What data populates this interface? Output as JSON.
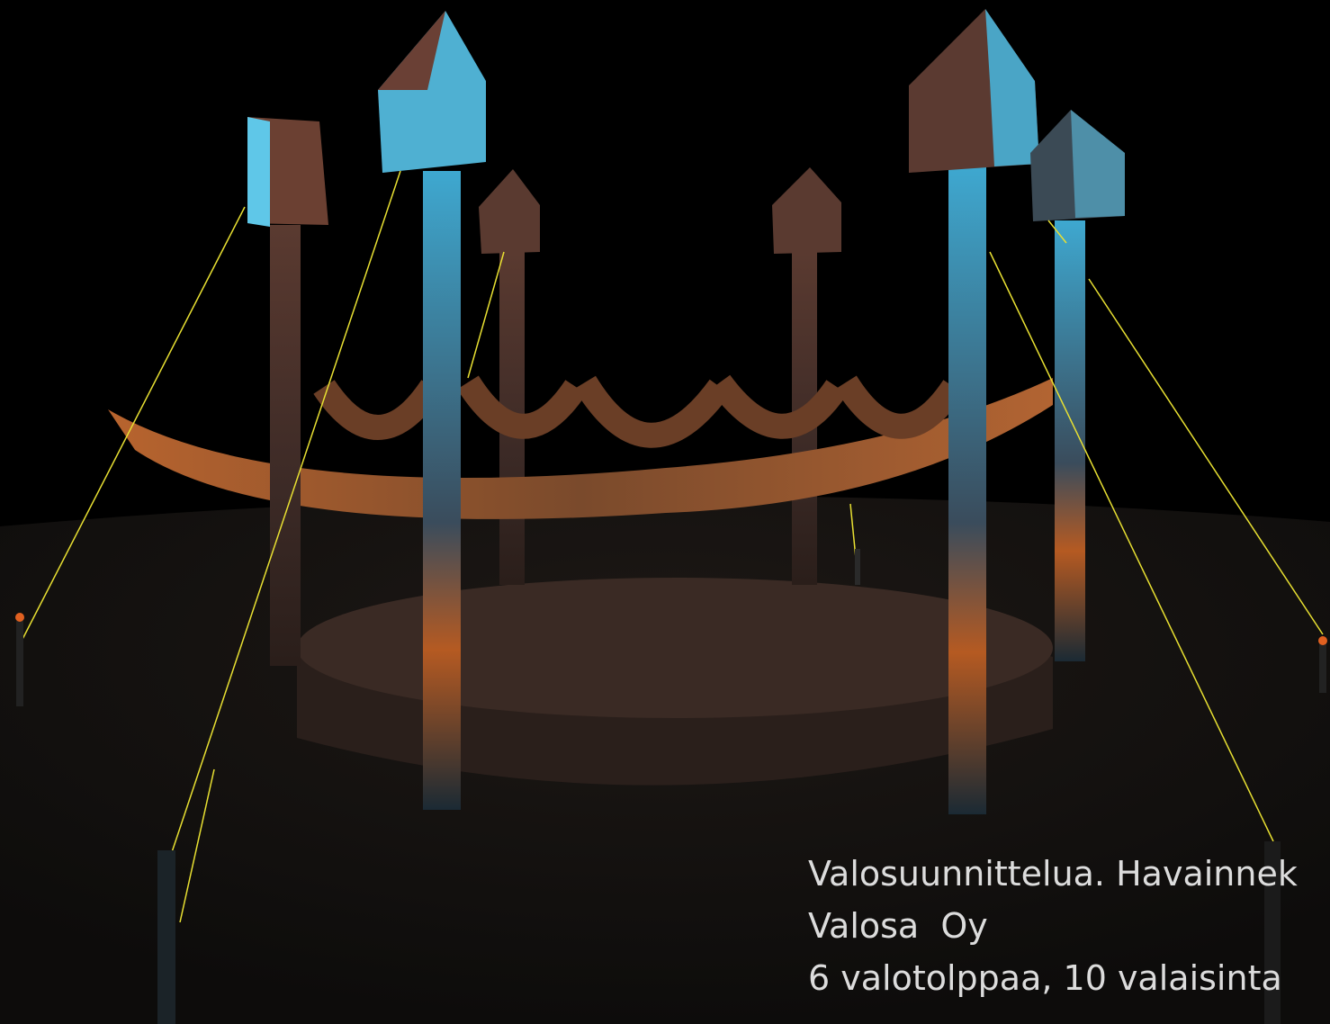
{
  "caption": {
    "lines": [
      "Valosuunnittelua. Havainnek",
      "Valosa  Oy",
      "6 valotolppaa, 10 valaisinta"
    ]
  }
}
